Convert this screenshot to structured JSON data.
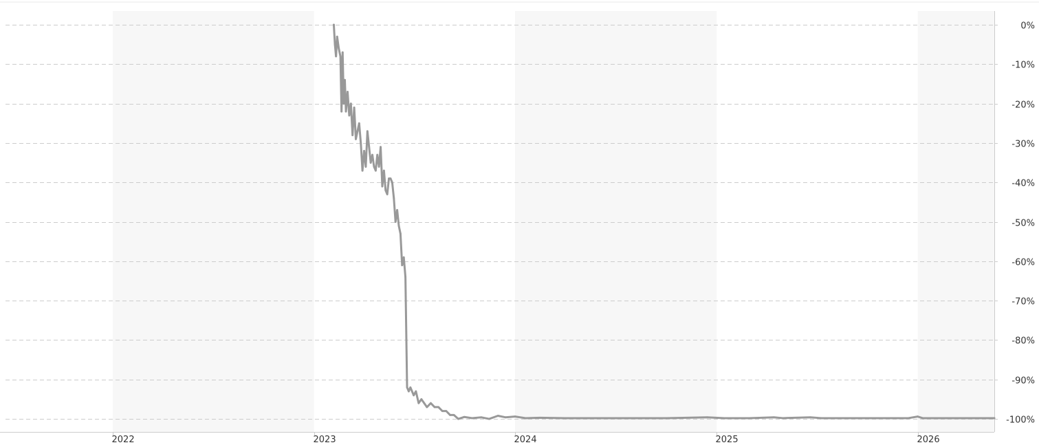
{
  "chart_data": {
    "type": "line",
    "title": "",
    "xlabel": "",
    "ylabel": "",
    "x_axis": {
      "tick_labels": [
        "2022",
        "2023",
        "2024",
        "2025",
        "2026"
      ],
      "range": [
        "2021-06-20",
        "2026-05-20"
      ]
    },
    "y_axis": {
      "tick_labels": [
        "0%",
        "-10%",
        "-20%",
        "-30%",
        "-40%",
        "-50%",
        "-60%",
        "-70%",
        "-80%",
        "-90%",
        "-100%"
      ],
      "tick_values": [
        0,
        -10,
        -20,
        -30,
        -40,
        -50,
        -60,
        -70,
        -80,
        -90,
        -100
      ],
      "range": [
        -103.3,
        3.5
      ],
      "position": "right",
      "unit": "%"
    },
    "grid": true,
    "alternating_year_bands": true,
    "colors": {
      "line": "#999999",
      "band": "#f7f7f7",
      "grid": "#cccccc",
      "axis": "#cccccc",
      "text": "#333333"
    },
    "series": [
      {
        "points": [
          [
            "2023-02-06",
            0
          ],
          [
            "2023-02-08",
            -5
          ],
          [
            "2023-02-10",
            -8
          ],
          [
            "2023-02-12",
            -3
          ],
          [
            "2023-02-15",
            -6
          ],
          [
            "2023-02-18",
            -8
          ],
          [
            "2023-02-20",
            -22
          ],
          [
            "2023-02-22",
            -7
          ],
          [
            "2023-02-24",
            -20
          ],
          [
            "2023-02-26",
            -14
          ],
          [
            "2023-02-28",
            -22
          ],
          [
            "2023-03-03",
            -17
          ],
          [
            "2023-03-06",
            -23
          ],
          [
            "2023-03-09",
            -20
          ],
          [
            "2023-03-12",
            -28
          ],
          [
            "2023-03-15",
            -21
          ],
          [
            "2023-03-18",
            -29
          ],
          [
            "2023-03-21",
            -27
          ],
          [
            "2023-03-24",
            -25
          ],
          [
            "2023-03-27",
            -30
          ],
          [
            "2023-03-30",
            -37
          ],
          [
            "2023-04-02",
            -32
          ],
          [
            "2023-04-05",
            -36
          ],
          [
            "2023-04-08",
            -27
          ],
          [
            "2023-04-11",
            -31
          ],
          [
            "2023-04-14",
            -35
          ],
          [
            "2023-04-17",
            -33
          ],
          [
            "2023-04-20",
            -36
          ],
          [
            "2023-04-23",
            -37
          ],
          [
            "2023-04-26",
            -33
          ],
          [
            "2023-04-29",
            -36
          ],
          [
            "2023-05-02",
            -31
          ],
          [
            "2023-05-05",
            -41
          ],
          [
            "2023-05-08",
            -37
          ],
          [
            "2023-05-11",
            -42
          ],
          [
            "2023-05-14",
            -43
          ],
          [
            "2023-05-17",
            -39
          ],
          [
            "2023-05-20",
            -39
          ],
          [
            "2023-05-23",
            -40
          ],
          [
            "2023-05-26",
            -44
          ],
          [
            "2023-05-29",
            -50
          ],
          [
            "2023-06-01",
            -47
          ],
          [
            "2023-06-04",
            -51
          ],
          [
            "2023-06-07",
            -53
          ],
          [
            "2023-06-10",
            -61
          ],
          [
            "2023-06-13",
            -59
          ],
          [
            "2023-06-16",
            -64
          ],
          [
            "2023-06-19",
            -92
          ],
          [
            "2023-06-22",
            -93
          ],
          [
            "2023-06-25",
            -92
          ],
          [
            "2023-06-28",
            -93
          ],
          [
            "2023-07-01",
            -94
          ],
          [
            "2023-07-05",
            -93
          ],
          [
            "2023-07-10",
            -96
          ],
          [
            "2023-07-15",
            -95
          ],
          [
            "2023-07-20",
            -96
          ],
          [
            "2023-07-25",
            -97
          ],
          [
            "2023-08-01",
            -96
          ],
          [
            "2023-08-08",
            -97
          ],
          [
            "2023-08-15",
            -97
          ],
          [
            "2023-08-22",
            -98
          ],
          [
            "2023-08-29",
            -98
          ],
          [
            "2023-09-05",
            -99
          ],
          [
            "2023-09-12",
            -99
          ],
          [
            "2023-09-20",
            -100
          ],
          [
            "2023-10-01",
            -99.5
          ],
          [
            "2023-10-15",
            -99.8
          ],
          [
            "2023-11-01",
            -99.6
          ],
          [
            "2023-11-15",
            -100
          ],
          [
            "2023-12-01",
            -99.2
          ],
          [
            "2023-12-15",
            -99.6
          ],
          [
            "2024-01-01",
            -99.4
          ],
          [
            "2024-01-20",
            -99.8
          ],
          [
            "2024-02-15",
            -99.7
          ],
          [
            "2024-04-01",
            -99.8
          ],
          [
            "2024-06-01",
            -99.8
          ],
          [
            "2024-08-01",
            -99.8
          ],
          [
            "2024-10-01",
            -99.8
          ],
          [
            "2024-12-15",
            -99.6
          ],
          [
            "2025-01-15",
            -99.8
          ],
          [
            "2025-03-01",
            -99.8
          ],
          [
            "2025-04-15",
            -99.6
          ],
          [
            "2025-05-01",
            -99.8
          ],
          [
            "2025-06-20",
            -99.6
          ],
          [
            "2025-07-10",
            -99.8
          ],
          [
            "2025-09-01",
            -99.8
          ],
          [
            "2025-11-01",
            -99.8
          ],
          [
            "2025-12-15",
            -99.8
          ],
          [
            "2026-01-01",
            -99.4
          ],
          [
            "2026-01-10",
            -99.8
          ],
          [
            "2026-03-01",
            -99.8
          ],
          [
            "2026-05-20",
            -99.8
          ]
        ]
      }
    ]
  }
}
